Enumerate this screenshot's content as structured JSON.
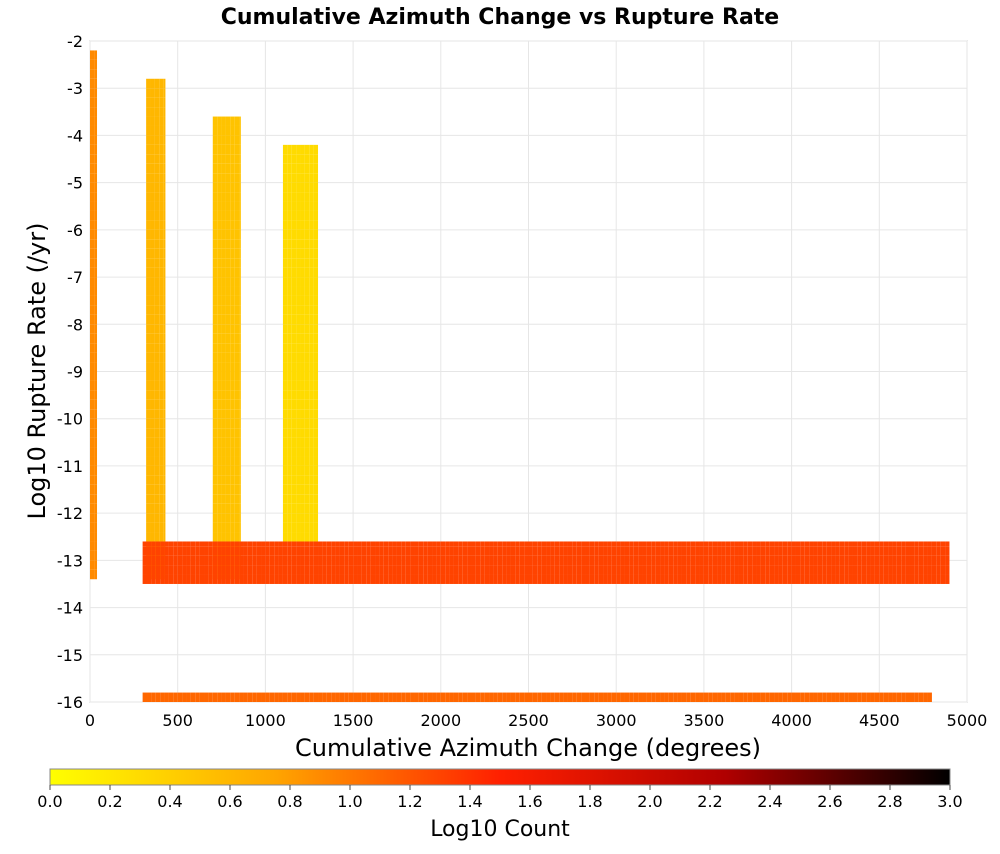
{
  "chart_data": {
    "type": "heatmap",
    "title": "Cumulative Azimuth Change vs Rupture Rate",
    "xlabel": "Cumulative Azimuth Change (degrees)",
    "ylabel": "Log10 Rupture Rate (/yr)",
    "xlim": [
      0,
      5000
    ],
    "ylim": [
      -16,
      -2
    ],
    "x_ticks": [
      0,
      500,
      1000,
      1500,
      2000,
      2500,
      3000,
      3500,
      4000,
      4500,
      5000
    ],
    "y_ticks": [
      -2,
      -3,
      -4,
      -5,
      -6,
      -7,
      -8,
      -9,
      -10,
      -11,
      -12,
      -13,
      -14,
      -15,
      -16
    ],
    "grid": true,
    "bin_width_x": 25,
    "bin_height_y": 0.2,
    "colorbar": {
      "label": "Log10 Count",
      "min": 0.0,
      "max": 3.0,
      "ticks": [
        "0.0",
        "0.2",
        "0.4",
        "0.6",
        "0.8",
        "1.0",
        "1.2",
        "1.4",
        "1.6",
        "1.8",
        "2.0",
        "2.2",
        "2.4",
        "2.6",
        "2.8",
        "3.0"
      ],
      "colors": [
        "#ffff00",
        "#ffa500",
        "#ff2000",
        "#b00000",
        "#000000"
      ]
    },
    "density_bands": [
      {
        "x": [
          0,
          40
        ],
        "y": [
          -13.4,
          -2.2
        ],
        "value": 0.9
      },
      {
        "x": [
          320,
          430
        ],
        "y": [
          -13.4,
          -2.8
        ],
        "value": 0.6
      },
      {
        "x": [
          700,
          860
        ],
        "y": [
          -13.4,
          -3.6
        ],
        "value": 0.5
      },
      {
        "x": [
          1100,
          1300
        ],
        "y": [
          -12.6,
          -4.2
        ],
        "value": 0.3
      },
      {
        "x": [
          300,
          4900
        ],
        "y": [
          -13.5,
          -12.6
        ],
        "value": 1.3
      },
      {
        "x": [
          300,
          4800
        ],
        "y": [
          -16,
          -15.8
        ],
        "value": 1.1
      }
    ]
  }
}
